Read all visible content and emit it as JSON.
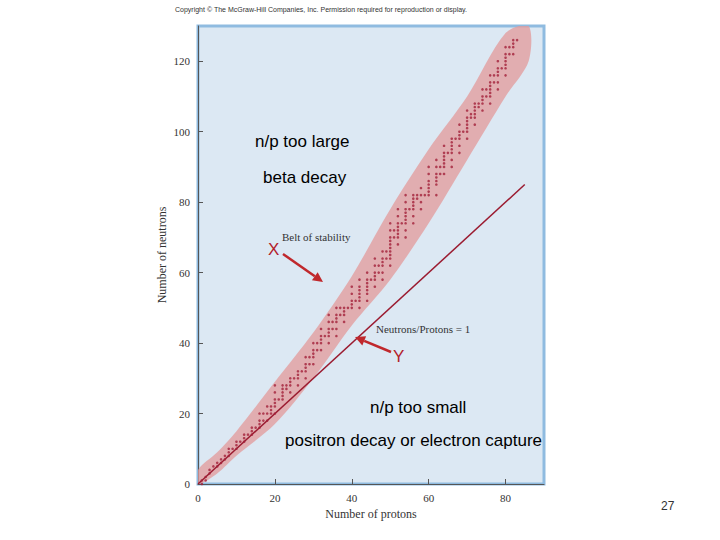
{
  "chart_data": {
    "type": "scatter",
    "copyright": "Copyright © The McGraw-Hill Companies, Inc. Permission required for reproduction or display.",
    "page_number": 27,
    "x_label": "Number of protons",
    "y_label": "Number of neutrons",
    "xlim": [
      0,
      90
    ],
    "ylim": [
      0,
      130
    ],
    "xticks": [
      0,
      20,
      40,
      60,
      80
    ],
    "yticks": [
      0,
      20,
      40,
      60,
      80,
      100,
      120
    ],
    "grid": false,
    "color": "#a3203a",
    "marker": "circle",
    "x": [
      1,
      1,
      2,
      2,
      3,
      3,
      4,
      5,
      5,
      6,
      6,
      7,
      7,
      8,
      8,
      8,
      9,
      10,
      10,
      10,
      11,
      12,
      12,
      12,
      13,
      14,
      14,
      14,
      15,
      16,
      16,
      16,
      16,
      17,
      17,
      18,
      18,
      18,
      19,
      19,
      19,
      20,
      20,
      20,
      20,
      20,
      20,
      21,
      22,
      22,
      22,
      22,
      22,
      23,
      23,
      24,
      24,
      24,
      24,
      25,
      26,
      26,
      26,
      26,
      27,
      28,
      28,
      28,
      28,
      28,
      29,
      29,
      30,
      30,
      30,
      30,
      30,
      31,
      31,
      32,
      32,
      32,
      32,
      32,
      33,
      34,
      34,
      34,
      34,
      34,
      34,
      35,
      35,
      36,
      36,
      36,
      36,
      36,
      36,
      37,
      37,
      38,
      38,
      38,
      38,
      39,
      40,
      40,
      40,
      40,
      40,
      41,
      42,
      42,
      42,
      42,
      42,
      42,
      42,
      44,
      44,
      44,
      44,
      44,
      44,
      44,
      45,
      46,
      46,
      46,
      46,
      46,
      46,
      47,
      47,
      48,
      48,
      48,
      48,
      48,
      48,
      49,
      49,
      50,
      50,
      50,
      50,
      50,
      50,
      50,
      50,
      50,
      50,
      51,
      51,
      52,
      52,
      52,
      52,
      52,
      52,
      52,
      52,
      53,
      54,
      54,
      54,
      54,
      54,
      54,
      54,
      54,
      54,
      55,
      56,
      56,
      56,
      56,
      56,
      56,
      56,
      57,
      57,
      58,
      58,
      58,
      58,
      59,
      60,
      60,
      60,
      60,
      60,
      60,
      60,
      62,
      62,
      62,
      62,
      62,
      62,
      62,
      63,
      63,
      64,
      64,
      64,
      64,
      64,
      64,
      64,
      65,
      66,
      66,
      66,
      66,
      66,
      66,
      66,
      67,
      68,
      68,
      68,
      68,
      68,
      68,
      69,
      70,
      70,
      70,
      70,
      70,
      70,
      70,
      71,
      71,
      72,
      72,
      72,
      72,
      72,
      72,
      73,
      73,
      74,
      74,
      74,
      74,
      74,
      75,
      75,
      76,
      76,
      76,
      76,
      76,
      76,
      76,
      77,
      77,
      78,
      78,
      78,
      78,
      78,
      78,
      79,
      80,
      80,
      80,
      80,
      80,
      80,
      80,
      81,
      81,
      82,
      82,
      82,
      82,
      83
    ],
    "values": [
      0,
      1,
      1,
      2,
      3,
      4,
      5,
      5,
      6,
      6,
      7,
      7,
      8,
      8,
      9,
      10,
      10,
      10,
      11,
      12,
      12,
      12,
      13,
      14,
      14,
      14,
      15,
      16,
      16,
      16,
      17,
      18,
      20,
      18,
      20,
      18,
      20,
      22,
      20,
      21,
      22,
      20,
      22,
      23,
      24,
      26,
      28,
      24,
      24,
      25,
      26,
      27,
      28,
      27,
      28,
      26,
      28,
      29,
      30,
      30,
      28,
      30,
      31,
      32,
      32,
      30,
      32,
      33,
      34,
      36,
      34,
      36,
      34,
      36,
      37,
      38,
      40,
      38,
      40,
      38,
      40,
      41,
      42,
      44,
      42,
      40,
      42,
      43,
      44,
      46,
      48,
      44,
      46,
      42,
      44,
      46,
      47,
      48,
      50,
      48,
      50,
      46,
      48,
      49,
      50,
      50,
      50,
      51,
      52,
      54,
      56,
      52,
      50,
      52,
      53,
      54,
      55,
      56,
      58,
      52,
      54,
      55,
      56,
      57,
      58,
      60,
      58,
      56,
      58,
      59,
      60,
      62,
      64,
      60,
      62,
      58,
      60,
      62,
      63,
      64,
      66,
      64,
      66,
      62,
      64,
      65,
      66,
      67,
      68,
      69,
      70,
      72,
      74,
      70,
      72,
      68,
      70,
      71,
      72,
      73,
      74,
      76,
      78,
      74,
      70,
      72,
      74,
      75,
      76,
      77,
      78,
      80,
      82,
      78,
      74,
      76,
      78,
      79,
      80,
      81,
      82,
      81,
      82,
      78,
      80,
      82,
      84,
      82,
      82,
      83,
      84,
      85,
      86,
      88,
      90,
      82,
      85,
      86,
      87,
      88,
      90,
      92,
      88,
      90,
      88,
      90,
      91,
      92,
      93,
      94,
      96,
      94,
      90,
      92,
      94,
      95,
      96,
      97,
      98,
      98,
      94,
      96,
      98,
      99,
      100,
      102,
      100,
      98,
      100,
      101,
      102,
      103,
      104,
      106,
      104,
      105,
      102,
      104,
      105,
      106,
      107,
      108,
      107,
      108,
      106,
      108,
      109,
      110,
      112,
      110,
      112,
      108,
      110,
      111,
      112,
      113,
      114,
      116,
      114,
      116,
      112,
      114,
      116,
      117,
      118,
      120,
      118,
      116,
      118,
      119,
      120,
      121,
      122,
      124,
      122,
      124,
      122,
      124,
      125,
      126,
      126
    ],
    "belt": {
      "label": "Belt of stability",
      "color": "#e39a9a",
      "x": [
        0,
        5,
        10,
        20,
        30,
        40,
        50,
        60,
        70,
        80,
        86
      ],
      "lower": [
        0,
        3,
        8,
        17,
        30,
        45,
        58,
        74,
        92,
        110,
        120
      ],
      "upper": [
        4,
        9,
        15,
        29,
        43,
        59,
        78,
        95,
        110,
        128,
        130
      ]
    },
    "reference_line": {
      "label": "Neutrons/Protons = 1",
      "color": "#9b1b30",
      "x": [
        0,
        85
      ],
      "values": [
        0,
        85
      ]
    },
    "annotations": [
      "n/p too large",
      "beta decay",
      "X",
      "Y",
      "n/p too small",
      "positron decay or electron capture"
    ]
  }
}
